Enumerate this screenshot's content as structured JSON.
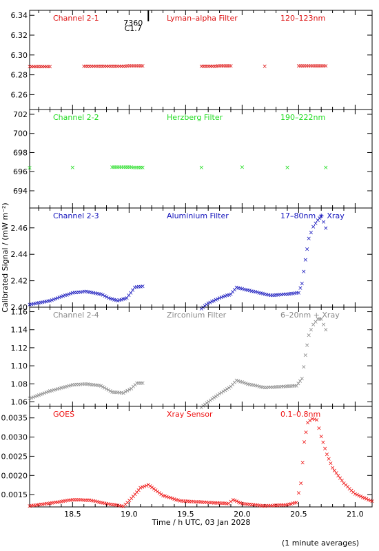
{
  "footer_note": "(1 minute averages)",
  "x_axis": {
    "label": "Time / h UTC, 03 Jan 2028",
    "range": [
      18.12,
      21.15
    ],
    "ticks": [
      "18.5",
      "19.0",
      "19.5",
      "20.0",
      "20.5",
      "21.0"
    ]
  },
  "y_axis_label": "Calibrated Signal / (mW m⁻²)",
  "event_marker": {
    "time": 19.17,
    "label_top": "7360",
    "label_bottom": "C1.7"
  },
  "chart_data": [
    {
      "type": "scatter",
      "channel": "Channel 2-1",
      "filter": "Lyman–alpha Filter",
      "band": "120–123nm",
      "color": "#dd1111",
      "ylim": [
        6.245,
        6.345
      ],
      "ticks": [
        "6.26",
        "6.28",
        "6.30",
        "6.32",
        "6.34"
      ],
      "points": [
        [
          18.12,
          6.2885
        ],
        [
          18.3,
          6.2885
        ],
        [
          18.6,
          6.2888
        ],
        [
          18.9,
          6.2888
        ],
        [
          19.12,
          6.2892
        ],
        [
          19.64,
          6.2886
        ],
        [
          19.9,
          6.2892
        ],
        [
          20.2,
          6.2888
        ],
        [
          20.5,
          6.289
        ],
        [
          20.74,
          6.2892
        ]
      ]
    },
    {
      "type": "scatter",
      "channel": "Channel 2-2",
      "filter": "Herzberg Filter",
      "band": "190–222nm",
      "color": "#22dd22",
      "ylim": [
        692.2,
        702.5
      ],
      "ticks": [
        "694",
        "696",
        "698",
        "700",
        "702"
      ],
      "points": [
        [
          18.12,
          696.4
        ],
        [
          18.5,
          696.45
        ],
        [
          18.85,
          696.5
        ],
        [
          19.12,
          696.45
        ],
        [
          19.64,
          696.45
        ],
        [
          20.0,
          696.5
        ],
        [
          20.4,
          696.45
        ],
        [
          20.74,
          696.45
        ]
      ]
    },
    {
      "type": "scatter",
      "channel": "Channel 2-3",
      "filter": "Aluminium Filter",
      "band": "17–80nm + Xray",
      "color": "#1111bb",
      "ylim": [
        2.4,
        2.475
      ],
      "ticks": [
        "2.40",
        "2.42",
        "2.44",
        "2.46"
      ],
      "points": [
        [
          18.12,
          2.402
        ],
        [
          18.3,
          2.405
        ],
        [
          18.5,
          2.411
        ],
        [
          18.62,
          2.412
        ],
        [
          18.75,
          2.41
        ],
        [
          18.82,
          2.407
        ],
        [
          18.9,
          2.405
        ],
        [
          18.98,
          2.407
        ],
        [
          19.05,
          2.415
        ],
        [
          19.12,
          2.416
        ],
        [
          19.64,
          2.399
        ],
        [
          19.7,
          2.403
        ],
        [
          19.8,
          2.407
        ],
        [
          19.9,
          2.41
        ],
        [
          19.95,
          2.415
        ],
        [
          20.05,
          2.413
        ],
        [
          20.15,
          2.411
        ],
        [
          20.25,
          2.409
        ],
        [
          20.4,
          2.41
        ],
        [
          20.5,
          2.411
        ],
        [
          20.53,
          2.418
        ],
        [
          20.56,
          2.436
        ],
        [
          20.59,
          2.452
        ],
        [
          20.63,
          2.461
        ],
        [
          20.67,
          2.466
        ],
        [
          20.7,
          2.469
        ],
        [
          20.74,
          2.46
        ]
      ]
    },
    {
      "type": "scatter",
      "channel": "Channel 2-4",
      "filter": "Zirconium Filter",
      "band": "6–20nm + Xray",
      "color": "#888888",
      "ylim": [
        1.055,
        1.165
      ],
      "ticks": [
        "1.06",
        "1.08",
        "1.10",
        "1.12",
        "1.14",
        "1.16"
      ],
      "points": [
        [
          18.12,
          1.064
        ],
        [
          18.3,
          1.072
        ],
        [
          18.5,
          1.079
        ],
        [
          18.62,
          1.08
        ],
        [
          18.75,
          1.078
        ],
        [
          18.85,
          1.071
        ],
        [
          18.95,
          1.07
        ],
        [
          19.02,
          1.075
        ],
        [
          19.07,
          1.081
        ],
        [
          19.12,
          1.081
        ],
        [
          19.64,
          1.054
        ],
        [
          19.72,
          1.062
        ],
        [
          19.8,
          1.069
        ],
        [
          19.9,
          1.077
        ],
        [
          19.95,
          1.084
        ],
        [
          20.05,
          1.08
        ],
        [
          20.2,
          1.076
        ],
        [
          20.35,
          1.077
        ],
        [
          20.48,
          1.078
        ],
        [
          20.53,
          1.086
        ],
        [
          20.56,
          1.112
        ],
        [
          20.59,
          1.134
        ],
        [
          20.63,
          1.146
        ],
        [
          20.67,
          1.152
        ],
        [
          20.7,
          1.152
        ],
        [
          20.74,
          1.14
        ]
      ]
    },
    {
      "type": "scatter",
      "channel": "GOES",
      "filter": "Xray Sensor",
      "band": "0.1–0.8nm",
      "color": "#ee1111",
      "ylim": [
        0.00118,
        0.0038
      ],
      "ticks": [
        "0.0015",
        "0.0020",
        "0.0025",
        "0.0030",
        "0.0035"
      ],
      "points": [
        [
          18.12,
          0.00121
        ],
        [
          18.3,
          0.00128
        ],
        [
          18.5,
          0.00137
        ],
        [
          18.65,
          0.00136
        ],
        [
          18.8,
          0.00127
        ],
        [
          18.95,
          0.0012
        ],
        [
          19.02,
          0.0014
        ],
        [
          19.1,
          0.00168
        ],
        [
          19.17,
          0.00176
        ],
        [
          19.3,
          0.00148
        ],
        [
          19.45,
          0.00134
        ],
        [
          19.7,
          0.0013
        ],
        [
          19.88,
          0.00127
        ],
        [
          19.92,
          0.00137
        ],
        [
          20.0,
          0.00127
        ],
        [
          20.2,
          0.00121
        ],
        [
          20.4,
          0.00124
        ],
        [
          20.48,
          0.0013
        ],
        [
          20.52,
          0.0018
        ],
        [
          20.55,
          0.00288
        ],
        [
          20.58,
          0.00338
        ],
        [
          20.62,
          0.00348
        ],
        [
          20.66,
          0.00345
        ],
        [
          20.7,
          0.00302
        ],
        [
          20.75,
          0.00255
        ],
        [
          20.8,
          0.0022
        ],
        [
          20.9,
          0.0018
        ],
        [
          21.0,
          0.00152
        ],
        [
          21.15,
          0.00133
        ]
      ]
    }
  ]
}
